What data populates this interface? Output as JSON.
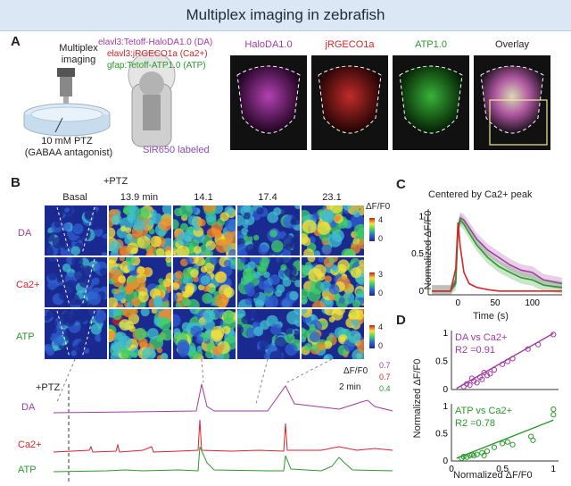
{
  "header": {
    "title": "Multiplex imaging in zebrafish"
  },
  "panel_labels": {
    "a": "A",
    "b": "B",
    "c": "C",
    "d": "D"
  },
  "panel_a": {
    "multiplex": "Multiplex",
    "imaging": "imaging",
    "ptz_line1": "10 mM PTZ",
    "ptz_line2": "(GABAA antagonist)",
    "constructs": [
      "elavl3:Tetoff-HaloDA1.0 (DA)",
      "elavl3:jRGECO1a (Ca2+)",
      "gfap:Tetoff-ATP1.0 (ATP)"
    ],
    "sir_label": "SiR650 labeled",
    "image_titles": [
      "HaloDA1.0",
      "jRGECO1a",
      "ATP1.0",
      "Overlay"
    ]
  },
  "panel_b": {
    "column_labels": [
      "Basal",
      "13.9 min",
      "14.1",
      "17.4",
      "23.1"
    ],
    "ptz_marker": "+PTZ",
    "row_labels": [
      "DA",
      "Ca2+",
      "ATP"
    ],
    "colorbar_title": "ΔF/F0",
    "colorbar_max": [
      "4",
      "3",
      "4"
    ],
    "colorbar_min": [
      "0",
      "0",
      "0"
    ],
    "trace_labels": [
      "DA",
      "Ca2+",
      "ATP"
    ],
    "trace_ptz": "+PTZ",
    "scale_title": "ΔF/F0",
    "scale_values": [
      "0.7",
      "0.7",
      "0.4"
    ],
    "scale_time": "2 min"
  },
  "chart_data": [
    {
      "type": "line",
      "title": "Centered by Ca2+ peak",
      "xlabel": "Time (s)",
      "ylabel": "Normalized ΔF/F0",
      "xlim": [
        -40,
        140
      ],
      "ylim": [
        -0.05,
        1.1
      ],
      "xticks": [
        "0",
        "50",
        "100"
      ],
      "yticks": [
        "0",
        "0.5",
        "1"
      ],
      "x": [
        -35,
        -20,
        -10,
        -3,
        0,
        3,
        8,
        15,
        25,
        40,
        55,
        70,
        85,
        100,
        115,
        130,
        140
      ],
      "series": [
        {
          "color": "#a23aa2",
          "values": [
            0.0,
            0.0,
            0.0,
            0.15,
            0.85,
            0.98,
            0.95,
            0.85,
            0.7,
            0.55,
            0.45,
            0.35,
            0.28,
            0.25,
            0.15,
            0.12,
            0.1
          ]
        },
        {
          "color": "#2a9a2a",
          "values": [
            0.0,
            0.0,
            0.0,
            0.1,
            0.8,
            0.95,
            0.9,
            0.78,
            0.62,
            0.45,
            0.33,
            0.25,
            0.18,
            0.15,
            0.08,
            0.06,
            0.05
          ]
        },
        {
          "color": "#d8232a",
          "values": [
            0.0,
            0.0,
            0.0,
            0.3,
            0.92,
            0.6,
            0.25,
            0.1,
            0.05,
            0.02,
            0.0,
            0.0,
            0.0,
            0.0,
            0.0,
            0.0,
            0.0
          ]
        }
      ]
    },
    {
      "type": "scatter",
      "annotation": "DA vs Ca2+",
      "r2": "R2 =0.91",
      "xlim": [
        0,
        1.05
      ],
      "ylim": [
        0,
        1.05
      ],
      "xticks": [
        "0",
        "0.5",
        "1"
      ],
      "yticks": [
        "0",
        "0.5",
        "1"
      ],
      "color": "#a23aa2",
      "points": [
        [
          0.12,
          0.05
        ],
        [
          0.15,
          0.1
        ],
        [
          0.18,
          0.08
        ],
        [
          0.2,
          0.2
        ],
        [
          0.22,
          0.15
        ],
        [
          0.25,
          0.12
        ],
        [
          0.28,
          0.22
        ],
        [
          0.3,
          0.18
        ],
        [
          0.32,
          0.3
        ],
        [
          0.35,
          0.25
        ],
        [
          0.38,
          0.28
        ],
        [
          0.42,
          0.35
        ],
        [
          0.5,
          0.45
        ],
        [
          0.55,
          0.5
        ],
        [
          0.6,
          0.55
        ],
        [
          0.75,
          0.72
        ],
        [
          0.85,
          0.8
        ],
        [
          1.0,
          0.98
        ]
      ],
      "fit": [
        [
          0.05,
          0.02
        ],
        [
          1.0,
          1.0
        ]
      ]
    },
    {
      "type": "scatter",
      "annotation": "ATP vs Ca2+",
      "r2": "R2 =0.78",
      "xlabel": "Normalized ΔF/F0",
      "ylabel": "Normalized ΔF/F0",
      "xlim": [
        0,
        1.05
      ],
      "ylim": [
        0,
        1.05
      ],
      "xticks": [
        "0",
        "0.5",
        "1"
      ],
      "yticks": [
        "0",
        "0.5",
        "1"
      ],
      "color": "#2a9a2a",
      "points": [
        [
          0.1,
          0.05
        ],
        [
          0.12,
          0.08
        ],
        [
          0.15,
          0.07
        ],
        [
          0.18,
          0.1
        ],
        [
          0.2,
          0.12
        ],
        [
          0.22,
          0.1
        ],
        [
          0.25,
          0.12
        ],
        [
          0.3,
          0.15
        ],
        [
          0.32,
          0.1
        ],
        [
          0.35,
          0.18
        ],
        [
          0.42,
          0.25
        ],
        [
          0.5,
          0.32
        ],
        [
          0.55,
          0.35
        ],
        [
          0.6,
          0.3
        ],
        [
          0.78,
          0.45
        ],
        [
          0.8,
          0.38
        ],
        [
          1.0,
          0.85
        ],
        [
          1.0,
          0.95
        ]
      ],
      "fit": [
        [
          0.05,
          0.05
        ],
        [
          1.0,
          0.75
        ]
      ]
    }
  ]
}
